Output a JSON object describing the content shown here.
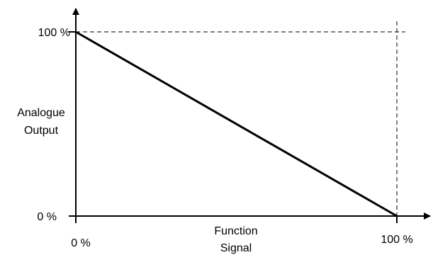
{
  "chart_data": {
    "type": "line",
    "title": "",
    "xlabel_lines": [
      "Function",
      "Signal"
    ],
    "ylabel_lines": [
      "Analogue",
      "Output"
    ],
    "x_ticks": [
      {
        "value": 0,
        "label": "0 %"
      },
      {
        "value": 100,
        "label": "100 %"
      }
    ],
    "y_ticks": [
      {
        "value": 0,
        "label": "0 %"
      },
      {
        "value": 100,
        "label": "100 %"
      }
    ],
    "xlim": [
      0,
      100
    ],
    "ylim": [
      0,
      100
    ],
    "grid": false,
    "reference_lines": "dashed lines at x = 100 % and y = 100 %",
    "series": [
      {
        "x": [
          0,
          100
        ],
        "y": [
          100,
          0
        ]
      }
    ],
    "line_color": "#000000"
  }
}
